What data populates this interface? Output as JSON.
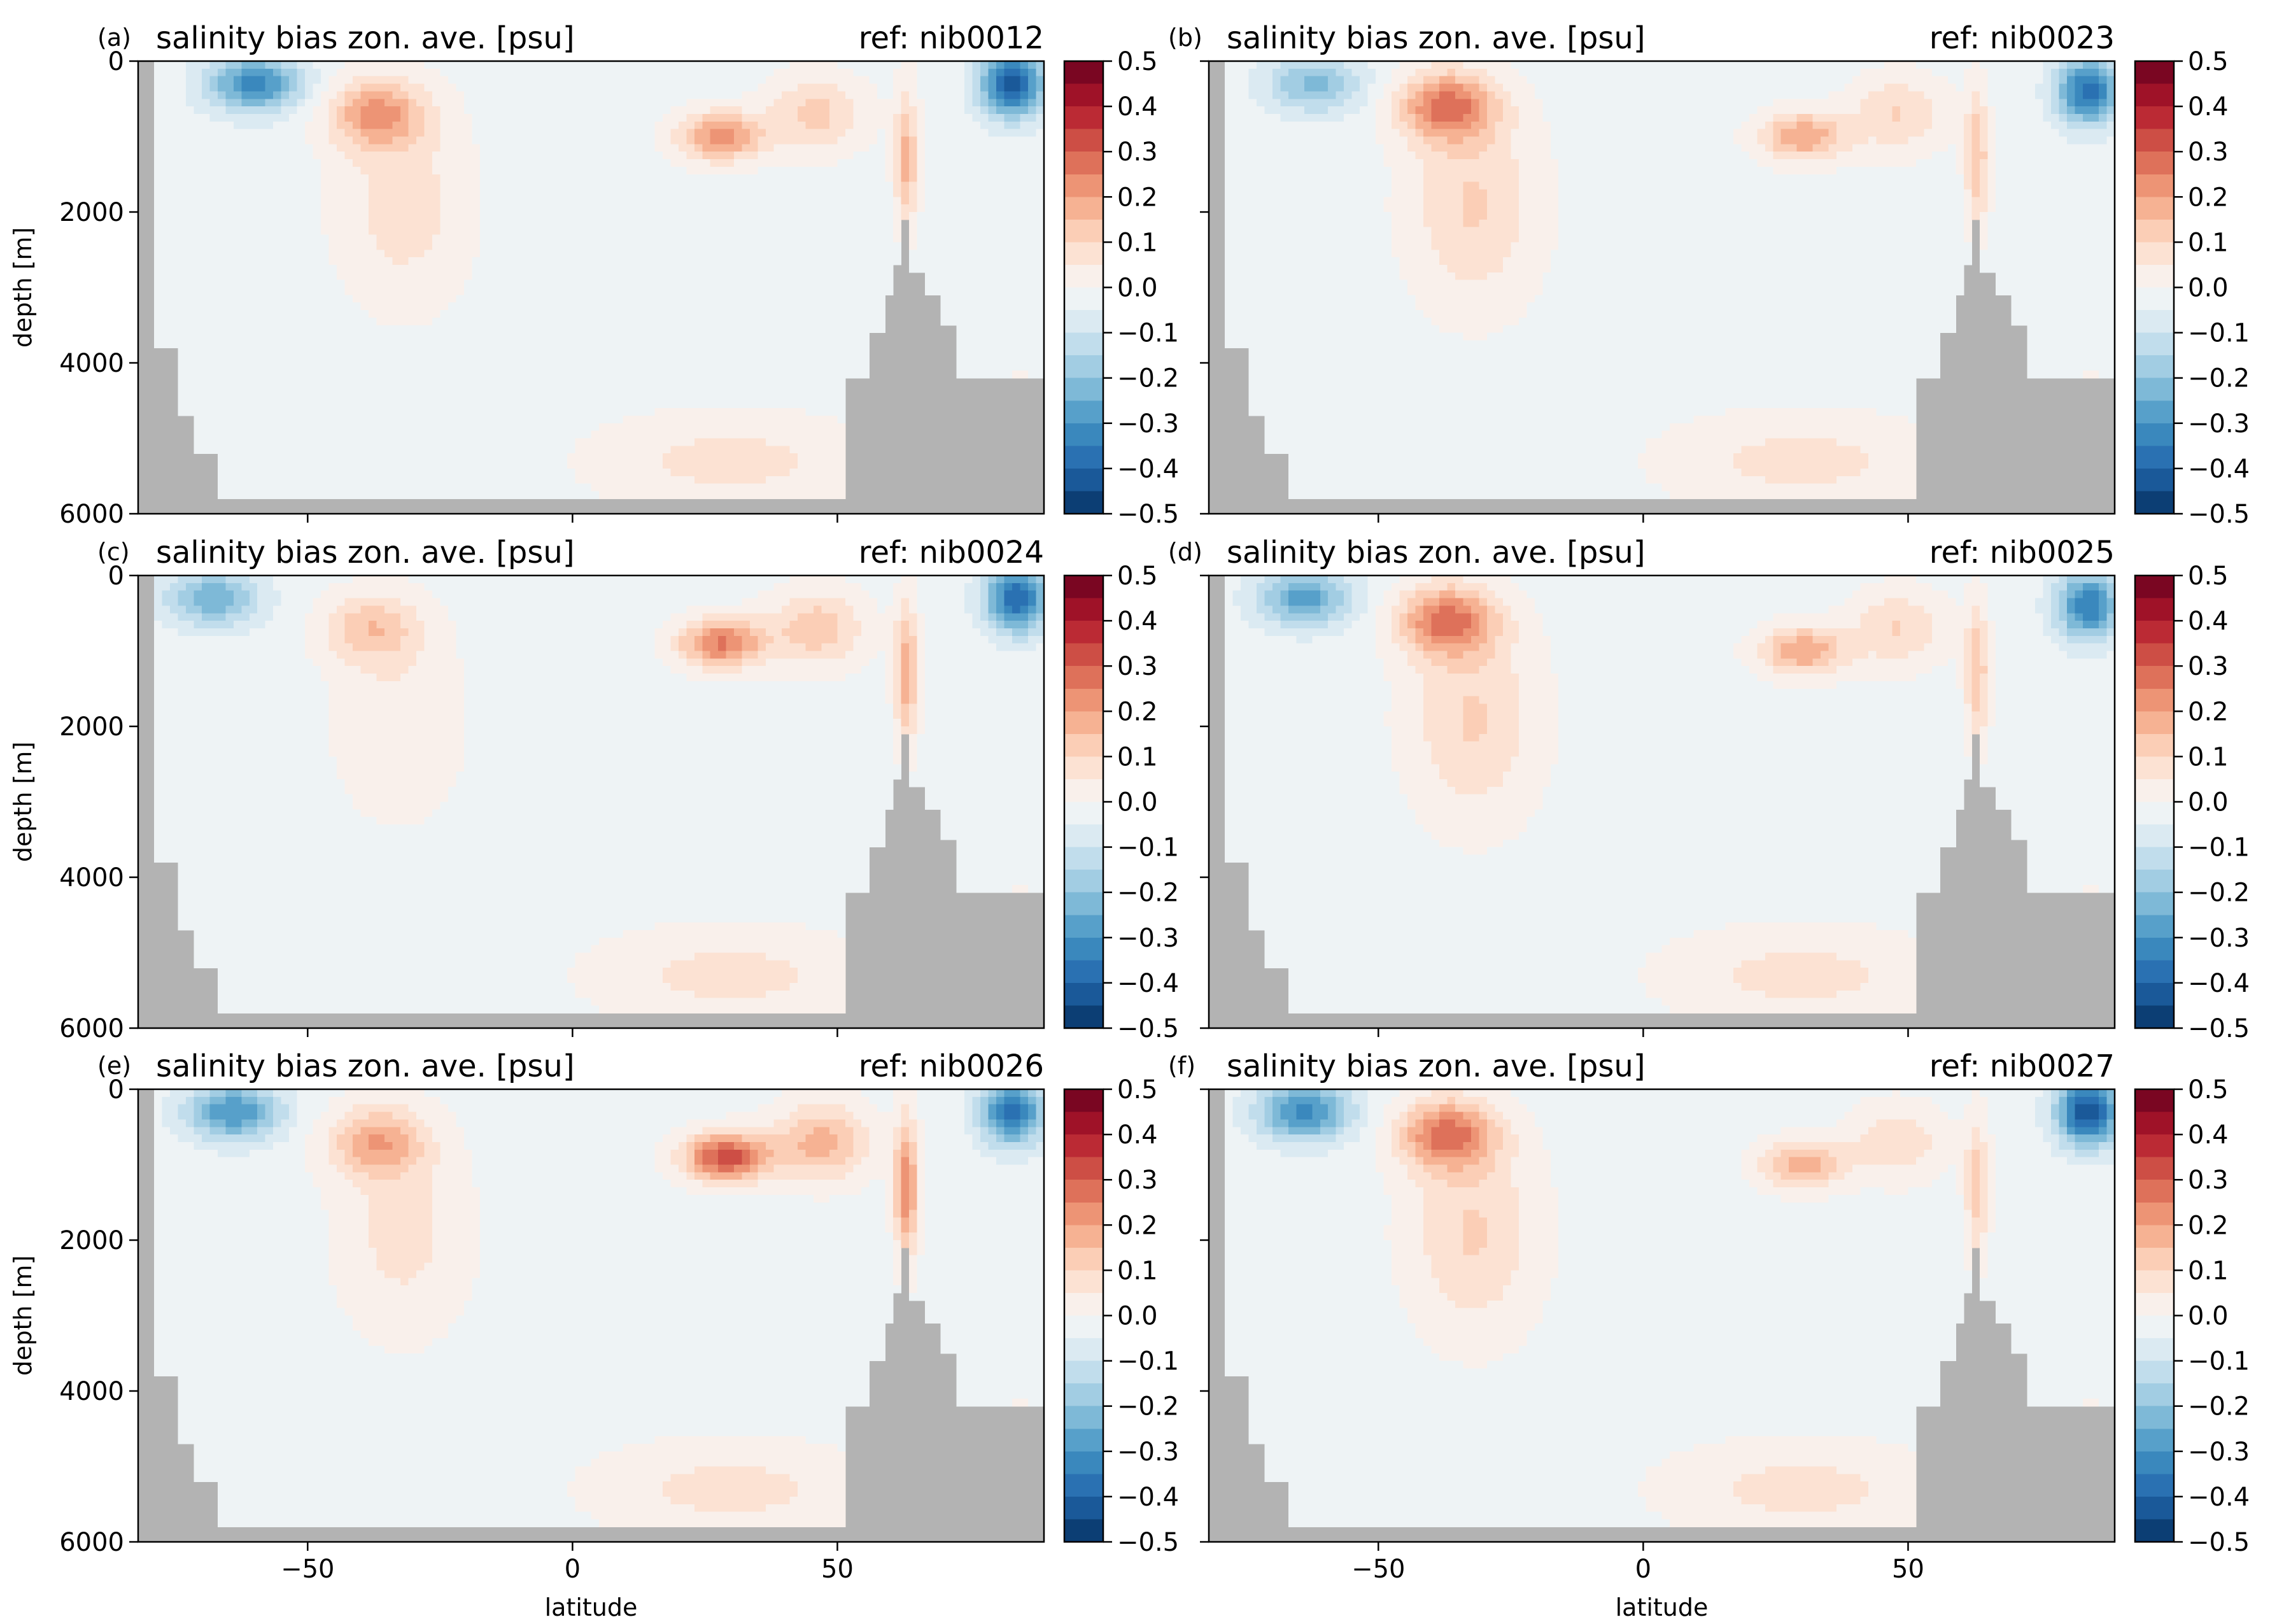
{
  "figure": {
    "colorbar_ticks": [
      "0.5",
      "0.4",
      "0.3",
      "0.2",
      "0.1",
      "0.0",
      "−0.1",
      "−0.2",
      "−0.3",
      "−0.4",
      "−0.5"
    ]
  },
  "chart_data": [
    {
      "type": "heatmap",
      "panel_label": "(a)",
      "title": "salinity bias zon. ave. [psu]",
      "ref_label": "ref: nib0012",
      "xlabel": "",
      "ylabel": "depth [m]",
      "xlim": [
        -82,
        89
      ],
      "ylim": [
        6000,
        0
      ],
      "x_ticks": [
        "−50",
        "0",
        "50"
      ],
      "y_ticks": [
        "0",
        "2000",
        "4000",
        "6000"
      ],
      "color_range": [
        -0.5,
        0.5
      ],
      "colormap": "RdBu_r",
      "colorbar_levels": 20,
      "features": [
        {
          "name": "southern-surface-fresh",
          "lat": -60,
          "depth": 300,
          "value": -0.3
        },
        {
          "name": "southern-intermediate-salty",
          "lat": -37,
          "depth": 700,
          "value": 0.22
        },
        {
          "name": "subtropical-north-salty",
          "lat": 28,
          "depth": 1000,
          "value": 0.25
        },
        {
          "name": "arctic-surface-fresh",
          "lat": 83,
          "depth": 300,
          "value": -0.4
        },
        {
          "name": "deep-interior",
          "lat": 0,
          "depth": 4000,
          "value": -0.02
        }
      ]
    },
    {
      "type": "heatmap",
      "panel_label": "(b)",
      "title": "salinity bias zon. ave. [psu]",
      "ref_label": "ref: nib0023",
      "xlabel": "",
      "ylabel": "",
      "xlim": [
        -82,
        89
      ],
      "ylim": [
        6000,
        0
      ],
      "x_ticks": [
        "−50",
        "0",
        "50"
      ],
      "y_ticks": [],
      "color_range": [
        -0.5,
        0.5
      ],
      "colormap": "RdBu_r",
      "colorbar_levels": 20,
      "features": [
        {
          "name": "southern-surface-fresh",
          "lat": -62,
          "depth": 300,
          "value": -0.2
        },
        {
          "name": "southern-intermediate-salty",
          "lat": -37,
          "depth": 600,
          "value": 0.28
        },
        {
          "name": "subtropical-north-salty",
          "lat": 30,
          "depth": 1000,
          "value": 0.22
        },
        {
          "name": "arctic-surface-fresh",
          "lat": 84,
          "depth": 400,
          "value": -0.35
        },
        {
          "name": "deep-interior",
          "lat": 0,
          "depth": 4000,
          "value": -0.02
        }
      ]
    },
    {
      "type": "heatmap",
      "panel_label": "(c)",
      "title": "salinity bias zon. ave. [psu]",
      "ref_label": "ref: nib0024",
      "xlabel": "",
      "ylabel": "depth [m]",
      "xlim": [
        -82,
        89
      ],
      "ylim": [
        6000,
        0
      ],
      "x_ticks": [
        "−50",
        "0",
        "50"
      ],
      "y_ticks": [
        "0",
        "2000",
        "4000",
        "6000"
      ],
      "color_range": [
        -0.5,
        0.5
      ],
      "colormap": "RdBu_r",
      "colorbar_levels": 20,
      "features": [
        {
          "name": "southern-surface-fresh",
          "lat": -68,
          "depth": 300,
          "value": -0.22
        },
        {
          "name": "southern-intermediate-salty",
          "lat": -38,
          "depth": 700,
          "value": 0.15
        },
        {
          "name": "subtropical-north-salty",
          "lat": 28,
          "depth": 900,
          "value": 0.28
        },
        {
          "name": "arctic-surface-fresh",
          "lat": 84,
          "depth": 300,
          "value": -0.38
        },
        {
          "name": "deep-interior",
          "lat": 0,
          "depth": 4000,
          "value": -0.02
        }
      ]
    },
    {
      "type": "heatmap",
      "panel_label": "(d)",
      "title": "salinity bias zon. ave. [psu]",
      "ref_label": "ref: nib0025",
      "xlabel": "",
      "ylabel": "",
      "xlim": [
        -82,
        89
      ],
      "ylim": [
        6000,
        0
      ],
      "x_ticks": [
        "−50",
        "0",
        "50"
      ],
      "y_ticks": [],
      "color_range": [
        -0.5,
        0.5
      ],
      "colormap": "RdBu_r",
      "colorbar_levels": 20,
      "features": [
        {
          "name": "southern-surface-fresh",
          "lat": -64,
          "depth": 300,
          "value": -0.25
        },
        {
          "name": "southern-intermediate-salty",
          "lat": -37,
          "depth": 600,
          "value": 0.28
        },
        {
          "name": "subtropical-north-salty",
          "lat": 30,
          "depth": 1000,
          "value": 0.22
        },
        {
          "name": "arctic-surface-fresh",
          "lat": 84,
          "depth": 400,
          "value": -0.33
        },
        {
          "name": "deep-interior",
          "lat": 0,
          "depth": 4000,
          "value": -0.02
        }
      ]
    },
    {
      "type": "heatmap",
      "panel_label": "(e)",
      "title": "salinity bias zon. ave. [psu]",
      "ref_label": "ref: nib0026",
      "xlabel": "latitude",
      "ylabel": "depth [m]",
      "xlim": [
        -82,
        89
      ],
      "ylim": [
        6000,
        0
      ],
      "x_ticks": [
        "−50",
        "0",
        "50"
      ],
      "y_ticks": [
        "0",
        "2000",
        "4000",
        "6000"
      ],
      "color_range": [
        -0.5,
        0.5
      ],
      "colormap": "RdBu_r",
      "colorbar_levels": 20,
      "features": [
        {
          "name": "southern-surface-fresh",
          "lat": -64,
          "depth": 300,
          "value": -0.28
        },
        {
          "name": "southern-intermediate-salty",
          "lat": -37,
          "depth": 700,
          "value": 0.2
        },
        {
          "name": "subtropical-north-salty",
          "lat": 29,
          "depth": 900,
          "value": 0.35
        },
        {
          "name": "arctic-surface-fresh",
          "lat": 83,
          "depth": 300,
          "value": -0.35
        },
        {
          "name": "deep-interior",
          "lat": 0,
          "depth": 4000,
          "value": -0.02
        }
      ]
    },
    {
      "type": "heatmap",
      "panel_label": "(f)",
      "title": "salinity bias zon. ave. [psu]",
      "ref_label": "ref: nib0027",
      "xlabel": "latitude",
      "ylabel": "",
      "xlim": [
        -82,
        89
      ],
      "ylim": [
        6000,
        0
      ],
      "x_ticks": [
        "−50",
        "0",
        "50"
      ],
      "y_ticks": [],
      "color_range": [
        -0.5,
        0.5
      ],
      "colormap": "RdBu_r",
      "colorbar_levels": 20,
      "features": [
        {
          "name": "southern-surface-fresh",
          "lat": -64,
          "depth": 300,
          "value": -0.3
        },
        {
          "name": "southern-intermediate-salty",
          "lat": -37,
          "depth": 600,
          "value": 0.28
        },
        {
          "name": "subtropical-north-salty",
          "lat": 30,
          "depth": 1000,
          "value": 0.2
        },
        {
          "name": "arctic-surface-fresh",
          "lat": 84,
          "depth": 300,
          "value": -0.42
        },
        {
          "name": "deep-interior",
          "lat": 0,
          "depth": 4000,
          "value": -0.02
        }
      ]
    }
  ]
}
